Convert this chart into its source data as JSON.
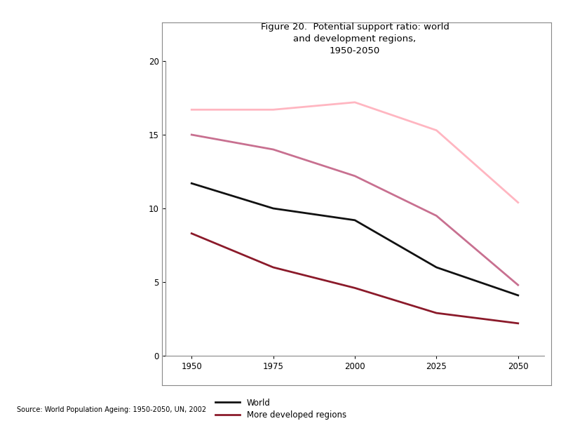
{
  "title": "Figure 20.  Potential support ratio: world\nand development regions,\n1950-2050",
  "x_values": [
    1950,
    1975,
    2000,
    2025,
    2050
  ],
  "series": {
    "World": {
      "values": [
        11.7,
        10.0,
        9.2,
        6.0,
        4.1
      ],
      "color": "#111111",
      "linewidth": 2.0
    },
    "More developed regions": {
      "values": [
        8.3,
        6.0,
        4.6,
        2.9,
        2.2
      ],
      "color": "#8B1A2A",
      "linewidth": 2.0
    },
    "Less developed regions": {
      "values": [
        15.0,
        14.0,
        12.2,
        9.5,
        4.8
      ],
      "color": "#C87090",
      "linewidth": 2.0
    },
    "Least developed countries": {
      "values": [
        16.7,
        16.7,
        17.2,
        15.3,
        10.4
      ],
      "color": "#FFB6C1",
      "linewidth": 2.0
    }
  },
  "xlim": [
    1942,
    2058
  ],
  "ylim": [
    0,
    20
  ],
  "xticks": [
    1950,
    1975,
    2000,
    2025,
    2050
  ],
  "yticks": [
    0,
    5,
    10,
    15,
    20
  ],
  "source_text": "Source: World Population Ageing: 1950-2050, UN, 2002",
  "background_color": "#ffffff"
}
